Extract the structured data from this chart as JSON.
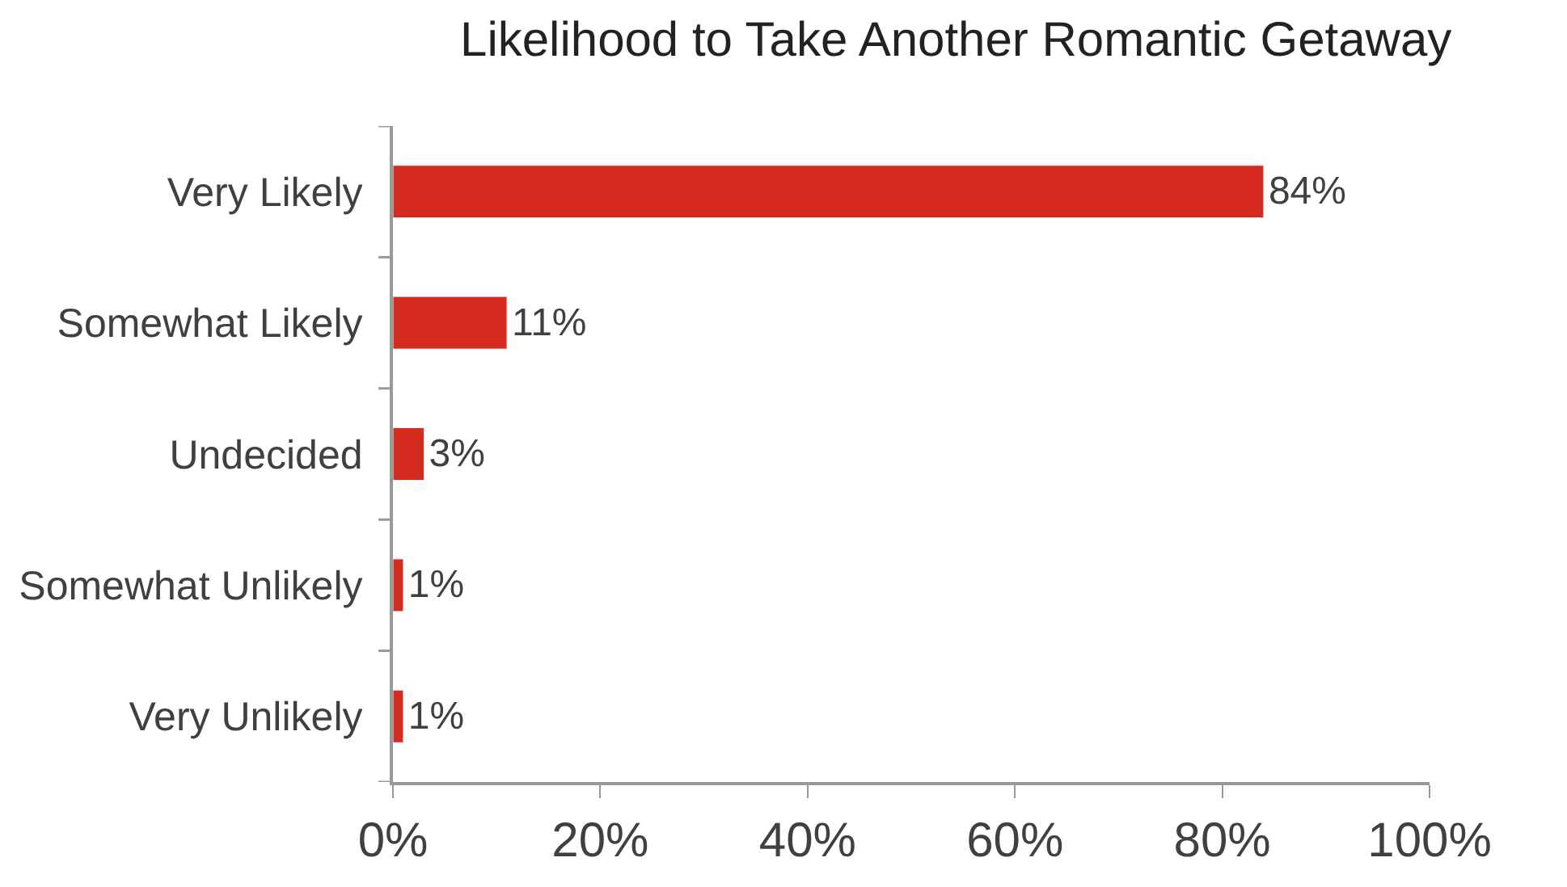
{
  "chart_data": {
    "type": "bar",
    "orientation": "horizontal",
    "title": "Likelihood to Take Another Romantic Getaway",
    "categories": [
      "Very Likely",
      "Somewhat Likely",
      "Undecided",
      "Somewhat Unlikely",
      "Very Unlikely"
    ],
    "values": [
      84,
      11,
      3,
      1,
      1
    ],
    "color": "#d52b1e",
    "value_labels": [
      "84%",
      "11%",
      "3%",
      "1%",
      "1%"
    ],
    "xlim": [
      0,
      100
    ],
    "xticks": [
      {
        "value": 0,
        "label": "0%"
      },
      {
        "value": 20,
        "label": "20%"
      },
      {
        "value": 40,
        "label": "40%"
      },
      {
        "value": 60,
        "label": "60%"
      },
      {
        "value": 80,
        "label": "80%"
      },
      {
        "value": 100,
        "label": "100%"
      }
    ],
    "legend": false
  }
}
